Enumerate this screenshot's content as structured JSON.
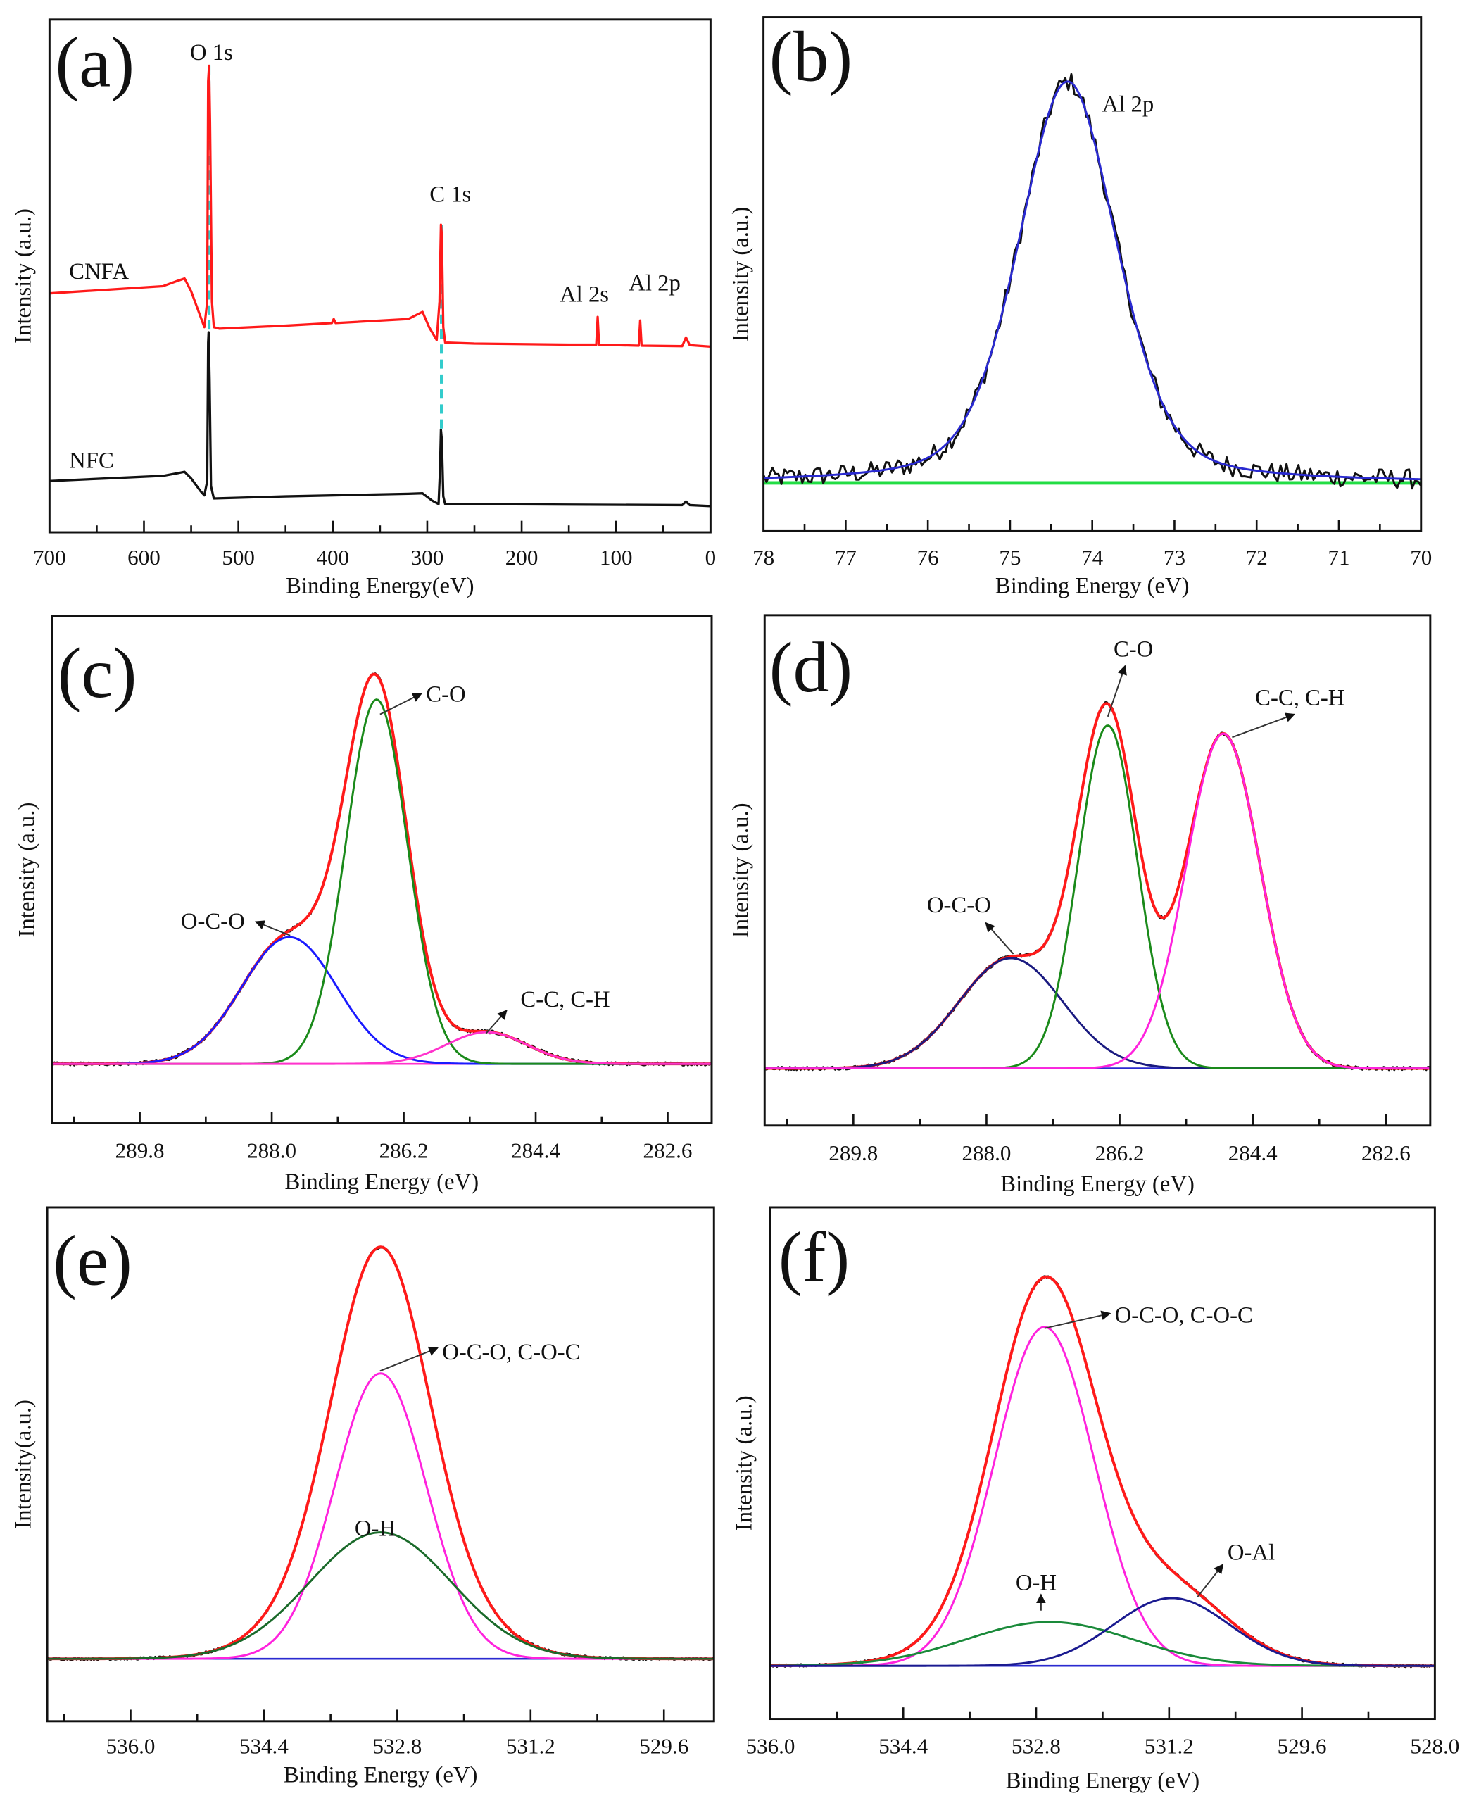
{
  "chart_data": [
    {
      "panel": "(a)",
      "type": "line",
      "xlabel": "Binding Energy(eV)",
      "ylabel": "Intensity (a.u.)",
      "xlim": [
        700,
        0
      ],
      "ylim": [
        0,
        100
      ],
      "xticks": [
        "700",
        "600",
        "500",
        "400",
        "300",
        "200",
        "100",
        "0"
      ],
      "minor_step": 50,
      "series": [
        {
          "name": "CNFA",
          "color": "#ff1a1a",
          "points": [
            [
              700,
              46.6
            ],
            [
              640,
              47.3
            ],
            [
              580,
              48
            ],
            [
              565,
              49
            ],
            [
              557,
              49.5
            ],
            [
              550,
              47
            ],
            [
              540,
              42
            ],
            [
              536,
              40
            ],
            [
              533,
              45
            ],
            [
              532,
              88
            ],
            [
              531,
              91
            ],
            [
              530,
              80
            ],
            [
              528,
              45
            ],
            [
              526,
              40
            ],
            [
              520,
              39.7
            ],
            [
              450,
              40.3
            ],
            [
              401,
              40.8
            ],
            [
              399,
              41.6
            ],
            [
              397,
              40.8
            ],
            [
              320,
              41.6
            ],
            [
              305,
              43
            ],
            [
              298,
              40
            ],
            [
              290,
              37.5
            ],
            [
              287,
              45
            ],
            [
              285.5,
              60
            ],
            [
              284.5,
              58
            ],
            [
              283,
              40
            ],
            [
              281,
              37
            ],
            [
              250,
              36.8
            ],
            [
              150,
              36.6
            ],
            [
              121,
              36.6
            ],
            [
              119.5,
              42
            ],
            [
              118,
              36.6
            ],
            [
              100,
              36.5
            ],
            [
              76,
              36.4
            ],
            [
              74.5,
              41.3
            ],
            [
              73,
              36.4
            ],
            [
              30,
              36.3
            ],
            [
              26,
              38
            ],
            [
              22,
              36.5
            ],
            [
              0,
              36.2
            ]
          ]
        },
        {
          "name": "NFC",
          "color": "#111111",
          "points": [
            [
              700,
              10
            ],
            [
              640,
              10.5
            ],
            [
              580,
              11
            ],
            [
              565,
              11.5
            ],
            [
              557,
              11.8
            ],
            [
              550,
              10.5
            ],
            [
              540,
              8
            ],
            [
              536,
              7.2
            ],
            [
              533,
              10
            ],
            [
              532,
              37
            ],
            [
              531.5,
              39
            ],
            [
              530.5,
              30
            ],
            [
              529,
              9
            ],
            [
              526,
              6.6
            ],
            [
              450,
              7
            ],
            [
              320,
              7.5
            ],
            [
              305,
              7.6
            ],
            [
              295,
              6.2
            ],
            [
              288,
              5.5
            ],
            [
              286.5,
              12
            ],
            [
              285.5,
              20
            ],
            [
              284.5,
              18
            ],
            [
              283,
              7
            ],
            [
              281,
              5.5
            ],
            [
              150,
              5.4
            ],
            [
              30,
              5.3
            ],
            [
              26,
              6
            ],
            [
              22,
              5.3
            ],
            [
              0,
              5.1
            ]
          ]
        }
      ],
      "guides": [
        {
          "x": 531,
          "y": [
            91,
            39
          ],
          "color": "#33cccc"
        },
        {
          "x": 285,
          "y": [
            60,
            20
          ],
          "color": "#33cccc"
        }
      ],
      "annotations": [
        "O 1s",
        "C 1s",
        "CNFA",
        "NFC",
        "Al 2s",
        "Al 2p"
      ]
    },
    {
      "panel": "(b)",
      "type": "line",
      "xlabel": "Binding Energy (eV)",
      "ylabel": "Intensity (a.u.)",
      "xlim": [
        78,
        70
      ],
      "ylim": [
        -12,
        116
      ],
      "xticks": [
        "78",
        "77",
        "76",
        "75",
        "74",
        "73",
        "72",
        "71",
        "70"
      ],
      "minor_step": 0.5,
      "components": [
        {
          "name": "Al 2p",
          "center": 74.3,
          "sigma": 0.6,
          "amplitude": 100,
          "lorentz_fraction": 0.35,
          "color": "#2a2ad0"
        }
      ],
      "envelope": null,
      "data_color": "#111111",
      "noise": 5,
      "baseline_color": "#22dd44",
      "annotations": [
        "Al 2p"
      ]
    },
    {
      "panel": "(c)",
      "type": "line",
      "xlabel": "Binding Energy (eV)",
      "ylabel": "Intensity (a.u.)",
      "xlim": [
        291.0,
        282.0
      ],
      "ylim": [
        -15,
        113
      ],
      "xticks": [
        "289.8",
        "288.0",
        "286.2",
        "284.4",
        "282.6"
      ],
      "minor_step": 0.9,
      "components": [
        {
          "name": "O-C-O",
          "center": 287.76,
          "sigma": 0.65,
          "amplitude": 32,
          "color": "#1a1aff"
        },
        {
          "name": "C-O",
          "center": 286.57,
          "sigma": 0.42,
          "amplitude": 92,
          "color": "#1a8a1a"
        },
        {
          "name": "C-C, C-H",
          "center": 285.07,
          "sigma": 0.55,
          "amplitude": 8,
          "color": "#ff33cc"
        }
      ],
      "envelope": "#ff1a1a",
      "data_color": "#111111",
      "noise": 0.8,
      "baseline_color": "#ff33cc",
      "annotations": [
        "C-O",
        "O-C-O",
        "C-C, C-H"
      ]
    },
    {
      "panel": "(d)",
      "type": "line",
      "xlabel": "Binding Energy (eV)",
      "ylabel": "Intensity (a.u.)",
      "xlim": [
        291.0,
        282.0
      ],
      "ylim": [
        -14,
        111
      ],
      "xticks": [
        "289.8",
        "288.0",
        "286.2",
        "284.4",
        "282.6"
      ],
      "minor_step": 0.9,
      "components": [
        {
          "name": "O-C-O",
          "center": 287.67,
          "sigma": 0.7,
          "amplitude": 27,
          "color": "#1a1a80"
        },
        {
          "name": "C-O",
          "center": 286.36,
          "sigma": 0.4,
          "amplitude": 84,
          "color": "#1a8a1a"
        },
        {
          "name": "C-C, C-H",
          "center": 284.8,
          "sigma": 0.5,
          "amplitude": 82,
          "color": "#ff22dd"
        }
      ],
      "envelope": "#ff1a1a",
      "data_color": "#111111",
      "noise": 0.8,
      "baseline_color": "#2a2ad0",
      "annotations": [
        "C-O",
        "C-C, C-H",
        "O-C-O"
      ]
    },
    {
      "panel": "(e)",
      "type": "line",
      "xlabel": "Binding Energy (eV)",
      "ylabel": "Intensity(a.u.)",
      "xlim": [
        537.0,
        529.0
      ],
      "ylim": [
        -15.3,
        110.7
      ],
      "xticks": [
        "536.0",
        "534.4",
        "532.8",
        "531.2",
        "529.6"
      ],
      "minor_step": 0.8,
      "components": [
        {
          "name": "O-C-O, C-O-C",
          "center": 533.0,
          "sigma": 0.55,
          "amplitude": 70,
          "color": "#ff22dd"
        },
        {
          "name": "O-H",
          "center": 533.0,
          "sigma": 0.85,
          "amplitude": 31,
          "color": "#1a6a2a"
        }
      ],
      "envelope": "#ff1a1a",
      "data_color": "#111111",
      "noise": 0.6,
      "baseline_color": "#2a2ad0",
      "annotations": [
        "O-C-O, C-O-C",
        "O-H"
      ]
    },
    {
      "panel": "(f)",
      "type": "line",
      "xlabel": "Binding Energy (eV)",
      "ylabel": "Intensity (a.u.)",
      "xlim": [
        536.0,
        528.0
      ],
      "ylim": [
        -13.3,
        115
      ],
      "xticks": [
        "536.0",
        "534.4",
        "532.8",
        "531.2",
        "529.6",
        "528.0"
      ],
      "minor_step": 0.8,
      "components": [
        {
          "name": "O-C-O, C-O-C",
          "center": 532.7,
          "sigma": 0.6,
          "amplitude": 85,
          "color": "#ff22dd"
        },
        {
          "name": "O-H",
          "center": 532.64,
          "sigma": 1.0,
          "amplitude": 11,
          "color": "#1a8a3a"
        },
        {
          "name": "O-Al",
          "center": 531.17,
          "sigma": 0.7,
          "amplitude": 17,
          "color": "#1a1a90"
        }
      ],
      "envelope": "#ff1a1a",
      "data_color": "#111111",
      "noise": 0.6,
      "baseline_color": "#2a2ad0",
      "annotations": [
        "O-C-O, C-O-C",
        "O-Al",
        "O-H"
      ]
    }
  ]
}
